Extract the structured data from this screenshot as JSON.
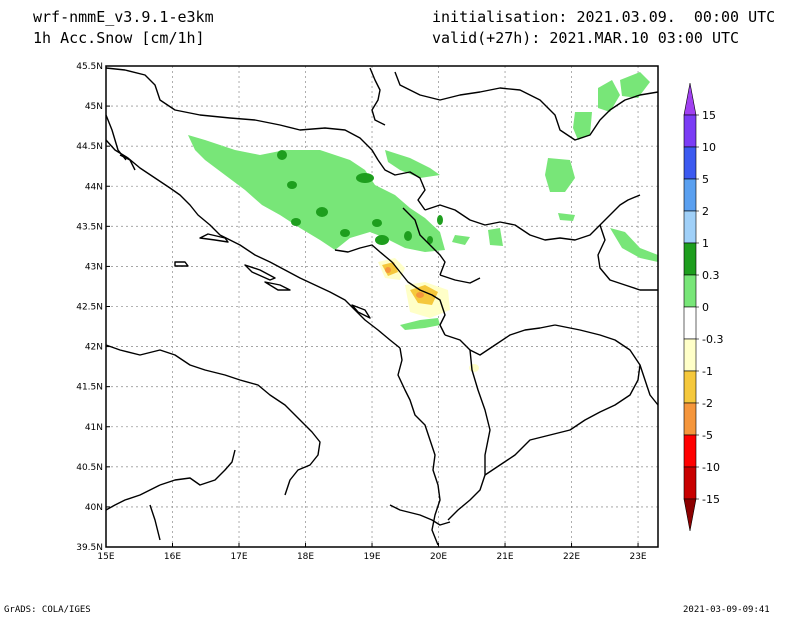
{
  "header": {
    "model": "wrf-nmmE_v3.9.1-e3km",
    "field": "1h Acc.Snow [cm/1h]",
    "init": "initialisation: 2021.03.09.  00:00 UTC",
    "valid": "valid(+27h): 2021.MAR.10 03:00 UTC"
  },
  "footer": {
    "left": "GrADS: COLA/IGES",
    "right": "2021-03-09-09:41"
  },
  "map": {
    "lon_ticks": [
      "15E",
      "16E",
      "17E",
      "18E",
      "19E",
      "20E",
      "21E",
      "22E",
      "23E"
    ],
    "lat_ticks": [
      "45.5N",
      "45N",
      "44.5N",
      "44N",
      "43.5N",
      "43N",
      "42.5N",
      "42N",
      "41.5N",
      "41N",
      "40.5N",
      "40N",
      "39.5N"
    ],
    "lon_range": [
      15,
      23.3
    ],
    "lat_range": [
      39.5,
      45.5
    ],
    "grid": true
  },
  "colorbar": {
    "labels": [
      "15",
      "10",
      "5",
      "2",
      "1",
      "0.3",
      "0",
      "-0.3",
      "-1",
      "-2",
      "-5",
      "-10",
      "-15"
    ],
    "colors": [
      "#7b3cf5",
      "#3c5af0",
      "#5aa0f0",
      "#a0d0f8",
      "#1e9e1e",
      "#78e678",
      "#ffffff",
      "#ffffc8",
      "#f5c83c",
      "#f5963c",
      "#ff0000",
      "#c80000",
      "#a00000"
    ],
    "top_color": "#a040f0",
    "bottom_color": "#8c0000"
  }
}
